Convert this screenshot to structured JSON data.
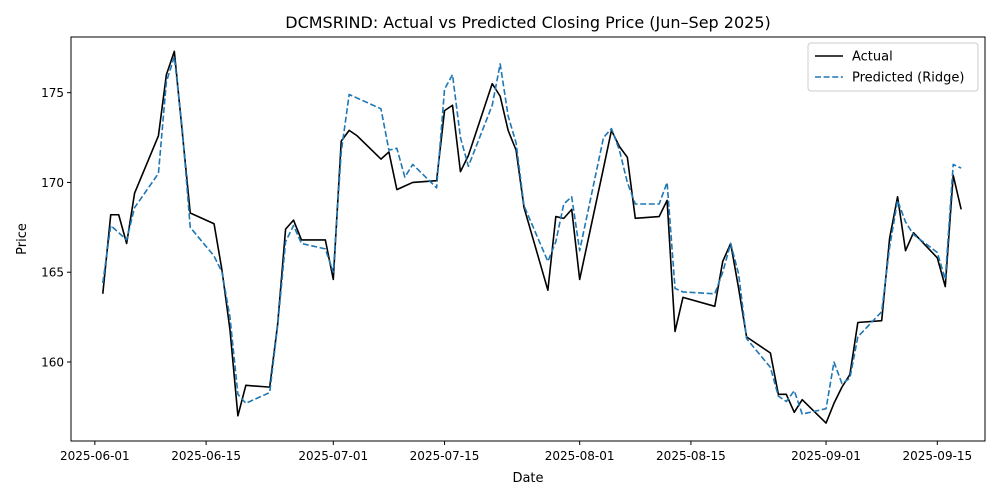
{
  "chart_data": {
    "type": "line",
    "title": "DCMSRIND: Actual vs Predicted Closing Price (Jun–Sep 2025)",
    "xlabel": "Date",
    "ylabel": "Price",
    "xlim": [
      "2025-05-29",
      "2025-09-21"
    ],
    "ylim": [
      155.6,
      178.1
    ],
    "x_ticks": [
      {
        "date": "2025-06-01",
        "label": "2025-06-01"
      },
      {
        "date": "2025-06-15",
        "label": "2025-06-15"
      },
      {
        "date": "2025-07-01",
        "label": "2025-07-01"
      },
      {
        "date": "2025-07-15",
        "label": "2025-07-15"
      },
      {
        "date": "2025-08-01",
        "label": "2025-08-01"
      },
      {
        "date": "2025-08-15",
        "label": "2025-08-15"
      },
      {
        "date": "2025-09-01",
        "label": "2025-09-01"
      },
      {
        "date": "2025-09-15",
        "label": "2025-09-15"
      }
    ],
    "y_ticks": [
      160,
      165,
      170,
      175
    ],
    "grid": false,
    "legend_position": "top-right",
    "series": [
      {
        "name": "Actual",
        "color": "#000000",
        "dash": "solid",
        "points": [
          [
            "2025-06-02",
            163.8
          ],
          [
            "2025-06-03",
            168.2
          ],
          [
            "2025-06-04",
            168.2
          ],
          [
            "2025-06-05",
            166.6
          ],
          [
            "2025-06-06",
            169.4
          ],
          [
            "2025-06-09",
            172.6
          ],
          [
            "2025-06-10",
            176.0
          ],
          [
            "2025-06-11",
            177.3
          ],
          [
            "2025-06-12",
            172.8
          ],
          [
            "2025-06-13",
            168.3
          ],
          [
            "2025-06-16",
            167.7
          ],
          [
            "2025-06-17",
            165.1
          ],
          [
            "2025-06-18",
            161.8
          ],
          [
            "2025-06-19",
            157.0
          ],
          [
            "2025-06-20",
            158.7
          ],
          [
            "2025-06-23",
            158.6
          ],
          [
            "2025-06-24",
            162.1
          ],
          [
            "2025-06-25",
            167.4
          ],
          [
            "2025-06-26",
            167.9
          ],
          [
            "2025-06-27",
            166.8
          ],
          [
            "2025-06-30",
            166.8
          ],
          [
            "2025-07-01",
            164.6
          ],
          [
            "2025-07-02",
            172.3
          ],
          [
            "2025-07-03",
            172.9
          ],
          [
            "2025-07-04",
            172.6
          ],
          [
            "2025-07-07",
            171.3
          ],
          [
            "2025-07-08",
            171.7
          ],
          [
            "2025-07-09",
            169.6
          ],
          [
            "2025-07-10",
            169.8
          ],
          [
            "2025-07-11",
            170.0
          ],
          [
            "2025-07-14",
            170.1
          ],
          [
            "2025-07-15",
            174.0
          ],
          [
            "2025-07-16",
            174.3
          ],
          [
            "2025-07-17",
            170.6
          ],
          [
            "2025-07-18",
            171.5
          ],
          [
            "2025-07-21",
            175.5
          ],
          [
            "2025-07-22",
            174.8
          ],
          [
            "2025-07-23",
            172.9
          ],
          [
            "2025-07-24",
            171.8
          ],
          [
            "2025-07-25",
            168.6
          ],
          [
            "2025-07-28",
            164.0
          ],
          [
            "2025-07-29",
            168.1
          ],
          [
            "2025-07-30",
            168.0
          ],
          [
            "2025-07-31",
            168.5
          ],
          [
            "2025-08-01",
            164.6
          ],
          [
            "2025-08-04",
            170.8
          ],
          [
            "2025-08-05",
            172.9
          ],
          [
            "2025-08-06",
            172.0
          ],
          [
            "2025-08-07",
            171.4
          ],
          [
            "2025-08-08",
            168.0
          ],
          [
            "2025-08-11",
            168.1
          ],
          [
            "2025-08-12",
            169.0
          ],
          [
            "2025-08-13",
            161.7
          ],
          [
            "2025-08-14",
            163.6
          ],
          [
            "2025-08-18",
            163.1
          ],
          [
            "2025-08-19",
            165.6
          ],
          [
            "2025-08-20",
            166.6
          ],
          [
            "2025-08-21",
            164.1
          ],
          [
            "2025-08-22",
            161.4
          ],
          [
            "2025-08-25",
            160.5
          ],
          [
            "2025-08-26",
            158.2
          ],
          [
            "2025-08-27",
            158.2
          ],
          [
            "2025-08-28",
            157.2
          ],
          [
            "2025-08-29",
            157.9
          ],
          [
            "2025-09-01",
            156.6
          ],
          [
            "2025-09-02",
            157.7
          ],
          [
            "2025-09-03",
            158.6
          ],
          [
            "2025-09-04",
            159.3
          ],
          [
            "2025-09-05",
            162.2
          ],
          [
            "2025-09-08",
            162.3
          ],
          [
            "2025-09-09",
            166.9
          ],
          [
            "2025-09-10",
            169.2
          ],
          [
            "2025-09-11",
            166.2
          ],
          [
            "2025-09-12",
            167.2
          ],
          [
            "2025-09-15",
            165.8
          ],
          [
            "2025-09-16",
            164.2
          ],
          [
            "2025-09-17",
            170.4
          ],
          [
            "2025-09-18",
            168.5
          ]
        ]
      },
      {
        "name": "Predicted (Ridge)",
        "color": "#1f77b4",
        "dash": "dashed",
        "points": [
          [
            "2025-06-02",
            164.4
          ],
          [
            "2025-06-03",
            167.6
          ],
          [
            "2025-06-04",
            167.2
          ],
          [
            "2025-06-05",
            166.8
          ],
          [
            "2025-06-06",
            168.6
          ],
          [
            "2025-06-09",
            170.5
          ],
          [
            "2025-06-10",
            175.6
          ],
          [
            "2025-06-11",
            177.0
          ],
          [
            "2025-06-12",
            173.0
          ],
          [
            "2025-06-13",
            167.5
          ],
          [
            "2025-06-16",
            165.9
          ],
          [
            "2025-06-17",
            165.0
          ],
          [
            "2025-06-18",
            162.5
          ],
          [
            "2025-06-19",
            158.2
          ],
          [
            "2025-06-20",
            157.7
          ],
          [
            "2025-06-23",
            158.3
          ],
          [
            "2025-06-24",
            162.0
          ],
          [
            "2025-06-25",
            166.7
          ],
          [
            "2025-06-26",
            167.6
          ],
          [
            "2025-06-27",
            166.6
          ],
          [
            "2025-06-30",
            166.3
          ],
          [
            "2025-07-01",
            165.0
          ],
          [
            "2025-07-02",
            171.7
          ],
          [
            "2025-07-03",
            174.9
          ],
          [
            "2025-07-04",
            174.7
          ],
          [
            "2025-07-07",
            174.1
          ],
          [
            "2025-07-08",
            171.8
          ],
          [
            "2025-07-09",
            171.9
          ],
          [
            "2025-07-10",
            170.3
          ],
          [
            "2025-07-11",
            171.0
          ],
          [
            "2025-07-14",
            169.7
          ],
          [
            "2025-07-15",
            175.2
          ],
          [
            "2025-07-16",
            176.0
          ],
          [
            "2025-07-17",
            172.5
          ],
          [
            "2025-07-18",
            170.9
          ],
          [
            "2025-07-21",
            174.3
          ],
          [
            "2025-07-22",
            176.6
          ],
          [
            "2025-07-23",
            173.7
          ],
          [
            "2025-07-24",
            172.2
          ],
          [
            "2025-07-25",
            168.7
          ],
          [
            "2025-07-28",
            165.6
          ],
          [
            "2025-07-29",
            166.7
          ],
          [
            "2025-07-30",
            168.8
          ],
          [
            "2025-07-31",
            169.2
          ],
          [
            "2025-08-01",
            166.2
          ],
          [
            "2025-08-04",
            172.5
          ],
          [
            "2025-08-05",
            173.0
          ],
          [
            "2025-08-06",
            171.8
          ],
          [
            "2025-08-07",
            170.0
          ],
          [
            "2025-08-08",
            168.8
          ],
          [
            "2025-08-11",
            168.8
          ],
          [
            "2025-08-12",
            170.0
          ],
          [
            "2025-08-13",
            164.1
          ],
          [
            "2025-08-14",
            163.9
          ],
          [
            "2025-08-18",
            163.8
          ],
          [
            "2025-08-19",
            165.0
          ],
          [
            "2025-08-20",
            166.6
          ],
          [
            "2025-08-21",
            164.9
          ],
          [
            "2025-08-22",
            161.3
          ],
          [
            "2025-08-25",
            159.7
          ],
          [
            "2025-08-26",
            158.1
          ],
          [
            "2025-08-27",
            157.8
          ],
          [
            "2025-08-28",
            158.4
          ],
          [
            "2025-08-29",
            157.1
          ],
          [
            "2025-09-01",
            157.4
          ],
          [
            "2025-09-02",
            160.0
          ],
          [
            "2025-09-03",
            158.8
          ],
          [
            "2025-09-04",
            159.1
          ],
          [
            "2025-09-05",
            161.4
          ],
          [
            "2025-09-08",
            162.8
          ],
          [
            "2025-09-09",
            166.4
          ],
          [
            "2025-09-10",
            169.0
          ],
          [
            "2025-09-11",
            167.8
          ],
          [
            "2025-09-12",
            167.1
          ],
          [
            "2025-09-15",
            166.1
          ],
          [
            "2025-09-16",
            164.6
          ],
          [
            "2025-09-17",
            171.0
          ],
          [
            "2025-09-18",
            170.8
          ]
        ]
      }
    ]
  }
}
